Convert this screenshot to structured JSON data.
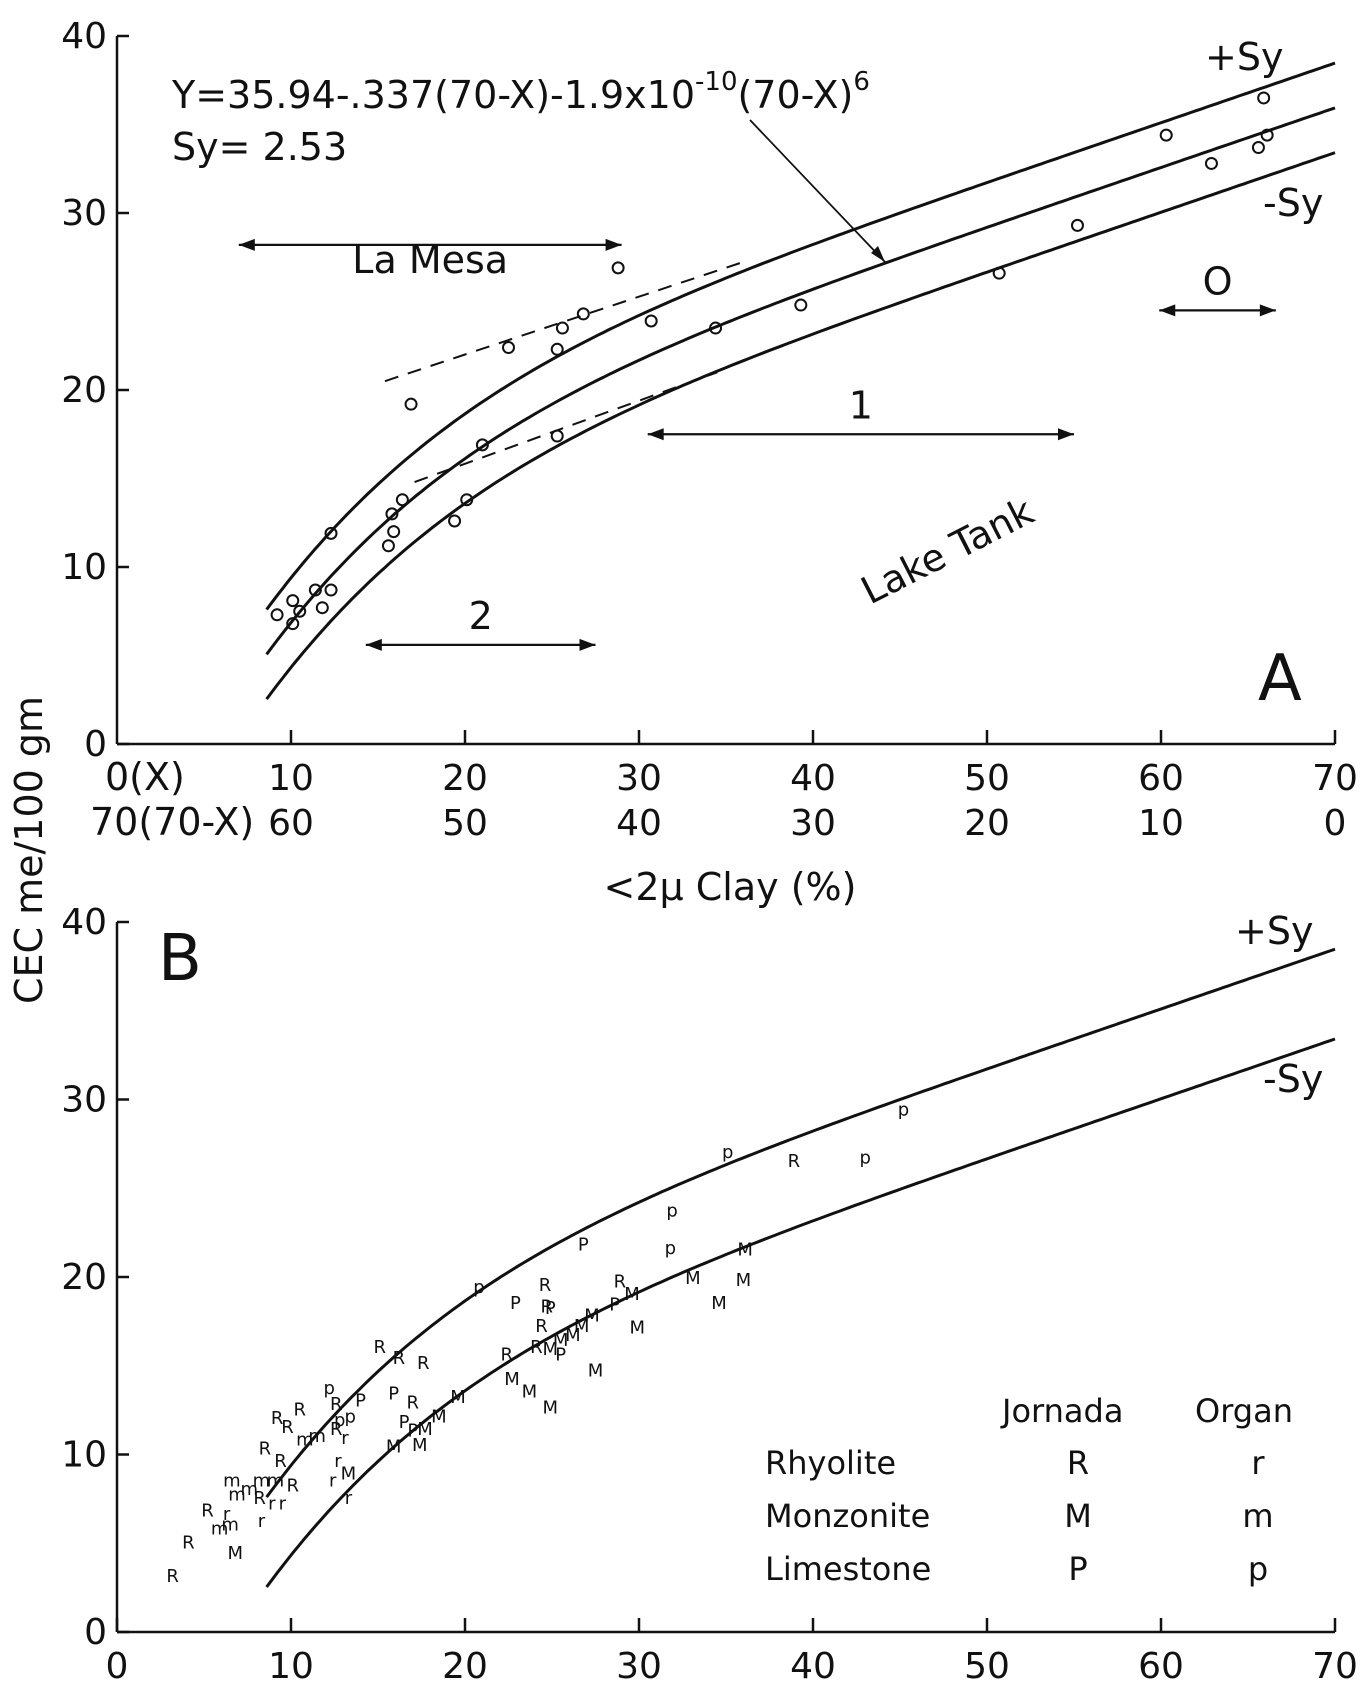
{
  "chart_data": [
    {
      "panel": "A",
      "type": "scatter",
      "panel_label": "A",
      "equation": "Y=35.94-.337(70-X)-1.9x10⁻¹⁰(70-X)⁶",
      "equation_parts": [
        "Y=35.94-.337(70-X)-1.9x10",
        "-10",
        "(70-X)",
        "6"
      ],
      "sy_label": "Sy= 2.53",
      "upper_label": "+Sy",
      "lower_label": "-Sy",
      "ylabel": "CEC me/100 gm",
      "xlabel": "<2μ Clay (%)",
      "x_axis_label": "0(X)",
      "x2_axis_label": "70(70-X)",
      "xlim": [
        0,
        70
      ],
      "ylim": [
        0,
        40
      ],
      "xticks": [
        "10",
        "20",
        "30",
        "40",
        "50",
        "60",
        "70"
      ],
      "x2ticks": [
        "60",
        "50",
        "40",
        "30",
        "20",
        "10",
        "0"
      ],
      "yticks": [
        "0",
        "10",
        "20",
        "30",
        "40"
      ],
      "curve": {
        "a": 35.94,
        "b": 0.337,
        "c": 1.9e-10,
        "sy": 2.53,
        "x_range": [
          8.6,
          70
        ]
      },
      "points": [
        [
          9.2,
          7.3
        ],
        [
          10.1,
          6.8
        ],
        [
          10.1,
          8.1
        ],
        [
          10.5,
          7.5
        ],
        [
          11.4,
          8.7
        ],
        [
          11.8,
          7.7
        ],
        [
          12.3,
          8.7
        ],
        [
          12.3,
          11.9
        ],
        [
          15.6,
          11.2
        ],
        [
          15.9,
          12.0
        ],
        [
          15.8,
          13.0
        ],
        [
          16.4,
          13.8
        ],
        [
          16.9,
          19.2
        ],
        [
          19.4,
          12.6
        ],
        [
          20.1,
          13.8
        ],
        [
          21.0,
          16.9
        ],
        [
          22.5,
          22.4
        ],
        [
          25.3,
          17.4
        ],
        [
          25.3,
          22.3
        ],
        [
          25.6,
          23.5
        ],
        [
          26.8,
          24.3
        ],
        [
          28.8,
          26.9
        ],
        [
          30.7,
          23.9
        ],
        [
          34.4,
          23.5
        ],
        [
          39.3,
          24.8
        ],
        [
          50.7,
          26.6
        ],
        [
          55.2,
          29.3
        ],
        [
          60.3,
          34.4
        ],
        [
          62.9,
          32.8
        ],
        [
          65.6,
          33.7
        ],
        [
          65.9,
          36.5
        ],
        [
          66.1,
          34.4
        ]
      ],
      "dashed_segments": [
        [
          [
            15.4,
            20.5
          ],
          [
            36.2,
            27.3
          ]
        ],
        [
          [
            17.1,
            14.8
          ],
          [
            34.5,
            21.0
          ]
        ]
      ],
      "range_arrows": [
        {
          "label": "La Mesa",
          "x1": 7.0,
          "x2": 29.0,
          "y": 28.2
        },
        {
          "label": "O",
          "x1": 59.9,
          "x2": 66.6,
          "y": 24.5
        },
        {
          "label": "1",
          "x1": 30.5,
          "x2": 55.0,
          "y": 17.5
        },
        {
          "label": "2",
          "x1": 14.3,
          "x2": 27.5,
          "y": 5.6
        }
      ],
      "annotation": "Lake Tank"
    },
    {
      "panel": "B",
      "type": "scatter",
      "panel_label": "B",
      "upper_label": "+Sy",
      "lower_label": "-Sy",
      "xlim": [
        0,
        70
      ],
      "ylim": [
        0,
        40
      ],
      "xticks": [
        "0",
        "10",
        "20",
        "30",
        "40",
        "50",
        "60",
        "70"
      ],
      "yticks": [
        "0",
        "10",
        "20",
        "30",
        "40"
      ],
      "legend": {
        "col_headers": [
          "Jornada",
          "Organ"
        ],
        "rows": [
          {
            "rock": "Rhyolite",
            "jornada": "R",
            "organ": "r"
          },
          {
            "rock": "Monzonite",
            "jornada": "M",
            "organ": "m"
          },
          {
            "rock": "Limestone",
            "jornada": "P",
            "organ": "p"
          }
        ]
      },
      "points": [
        {
          "x": 3.2,
          "y": 3.2,
          "s": "R"
        },
        {
          "x": 4.1,
          "y": 5.1,
          "s": "R"
        },
        {
          "x": 5.2,
          "y": 6.9,
          "s": "R"
        },
        {
          "x": 5.9,
          "y": 5.9,
          "s": "m"
        },
        {
          "x": 6.5,
          "y": 6.1,
          "s": "m"
        },
        {
          "x": 6.3,
          "y": 6.7,
          "s": "r"
        },
        {
          "x": 6.9,
          "y": 7.8,
          "s": "m"
        },
        {
          "x": 6.6,
          "y": 8.6,
          "s": "m"
        },
        {
          "x": 6.8,
          "y": 4.5,
          "s": "M"
        },
        {
          "x": 8.3,
          "y": 6.3,
          "s": "r"
        },
        {
          "x": 8.3,
          "y": 8.6,
          "s": "m"
        },
        {
          "x": 7.6,
          "y": 8.1,
          "s": "m"
        },
        {
          "x": 8.2,
          "y": 7.6,
          "s": "R"
        },
        {
          "x": 8.9,
          "y": 7.3,
          "s": "r"
        },
        {
          "x": 9.5,
          "y": 7.3,
          "s": "r"
        },
        {
          "x": 9.1,
          "y": 8.6,
          "s": "m"
        },
        {
          "x": 10.1,
          "y": 8.3,
          "s": "R"
        },
        {
          "x": 8.5,
          "y": 10.4,
          "s": "R"
        },
        {
          "x": 9.4,
          "y": 9.7,
          "s": "R"
        },
        {
          "x": 9.2,
          "y": 12.1,
          "s": "R"
        },
        {
          "x": 9.8,
          "y": 11.6,
          "s": "R"
        },
        {
          "x": 10.5,
          "y": 12.6,
          "s": "R"
        },
        {
          "x": 10.8,
          "y": 10.9,
          "s": "m"
        },
        {
          "x": 11.5,
          "y": 11.1,
          "s": "m"
        },
        {
          "x": 12.6,
          "y": 12.9,
          "s": "R"
        },
        {
          "x": 12.2,
          "y": 13.8,
          "s": "p"
        },
        {
          "x": 12.6,
          "y": 11.5,
          "s": "R"
        },
        {
          "x": 13.1,
          "y": 11.0,
          "s": "r"
        },
        {
          "x": 12.8,
          "y": 12.0,
          "s": "p"
        },
        {
          "x": 13.4,
          "y": 12.2,
          "s": "p"
        },
        {
          "x": 14.0,
          "y": 13.1,
          "s": "P"
        },
        {
          "x": 12.7,
          "y": 9.7,
          "s": "r"
        },
        {
          "x": 12.4,
          "y": 8.6,
          "s": "r"
        },
        {
          "x": 13.3,
          "y": 9.0,
          "s": "M"
        },
        {
          "x": 13.3,
          "y": 7.6,
          "s": "r"
        },
        {
          "x": 15.1,
          "y": 16.1,
          "s": "R"
        },
        {
          "x": 16.2,
          "y": 15.5,
          "s": "R"
        },
        {
          "x": 15.9,
          "y": 13.5,
          "s": "P"
        },
        {
          "x": 17.0,
          "y": 13.0,
          "s": "R"
        },
        {
          "x": 16.5,
          "y": 11.9,
          "s": "P"
        },
        {
          "x": 17.0,
          "y": 11.4,
          "s": "P"
        },
        {
          "x": 17.7,
          "y": 11.5,
          "s": "M"
        },
        {
          "x": 17.4,
          "y": 10.6,
          "s": "M"
        },
        {
          "x": 17.6,
          "y": 15.2,
          "s": "R"
        },
        {
          "x": 15.9,
          "y": 10.5,
          "s": "M"
        },
        {
          "x": 18.5,
          "y": 12.2,
          "s": "M"
        },
        {
          "x": 19.6,
          "y": 13.3,
          "s": "M"
        },
        {
          "x": 20.8,
          "y": 19.5,
          "s": "p"
        },
        {
          "x": 22.4,
          "y": 15.7,
          "s": "R"
        },
        {
          "x": 22.7,
          "y": 14.3,
          "s": "M"
        },
        {
          "x": 22.9,
          "y": 18.6,
          "s": "P"
        },
        {
          "x": 23.7,
          "y": 13.6,
          "s": "M"
        },
        {
          "x": 24.6,
          "y": 19.6,
          "s": "R"
        },
        {
          "x": 24.7,
          "y": 18.4,
          "s": "R"
        },
        {
          "x": 24.9,
          "y": 18.3,
          "s": "P"
        },
        {
          "x": 24.4,
          "y": 17.3,
          "s": "R"
        },
        {
          "x": 24.1,
          "y": 16.1,
          "s": "R"
        },
        {
          "x": 24.9,
          "y": 16.0,
          "s": "M"
        },
        {
          "x": 25.5,
          "y": 16.5,
          "s": "M"
        },
        {
          "x": 25.5,
          "y": 15.7,
          "s": "P"
        },
        {
          "x": 24.9,
          "y": 12.7,
          "s": "M"
        },
        {
          "x": 26.2,
          "y": 16.8,
          "s": "M"
        },
        {
          "x": 26.7,
          "y": 17.3,
          "s": "M"
        },
        {
          "x": 27.3,
          "y": 17.9,
          "s": "M"
        },
        {
          "x": 26.8,
          "y": 21.9,
          "s": "P"
        },
        {
          "x": 27.5,
          "y": 14.8,
          "s": "M"
        },
        {
          "x": 28.6,
          "y": 18.5,
          "s": "P"
        },
        {
          "x": 28.9,
          "y": 19.8,
          "s": "R"
        },
        {
          "x": 29.6,
          "y": 19.1,
          "s": "M"
        },
        {
          "x": 29.9,
          "y": 17.2,
          "s": "M"
        },
        {
          "x": 31.9,
          "y": 23.8,
          "s": "p"
        },
        {
          "x": 31.8,
          "y": 21.7,
          "s": "p"
        },
        {
          "x": 33.1,
          "y": 20.0,
          "s": "M"
        },
        {
          "x": 34.6,
          "y": 18.6,
          "s": "M"
        },
        {
          "x": 35.1,
          "y": 27.1,
          "s": "p"
        },
        {
          "x": 36.1,
          "y": 21.6,
          "s": "M"
        },
        {
          "x": 36.0,
          "y": 19.9,
          "s": "M"
        },
        {
          "x": 38.9,
          "y": 26.6,
          "s": "R"
        },
        {
          "x": 43.0,
          "y": 26.8,
          "s": "p"
        },
        {
          "x": 45.2,
          "y": 29.5,
          "s": "p"
        }
      ]
    }
  ]
}
